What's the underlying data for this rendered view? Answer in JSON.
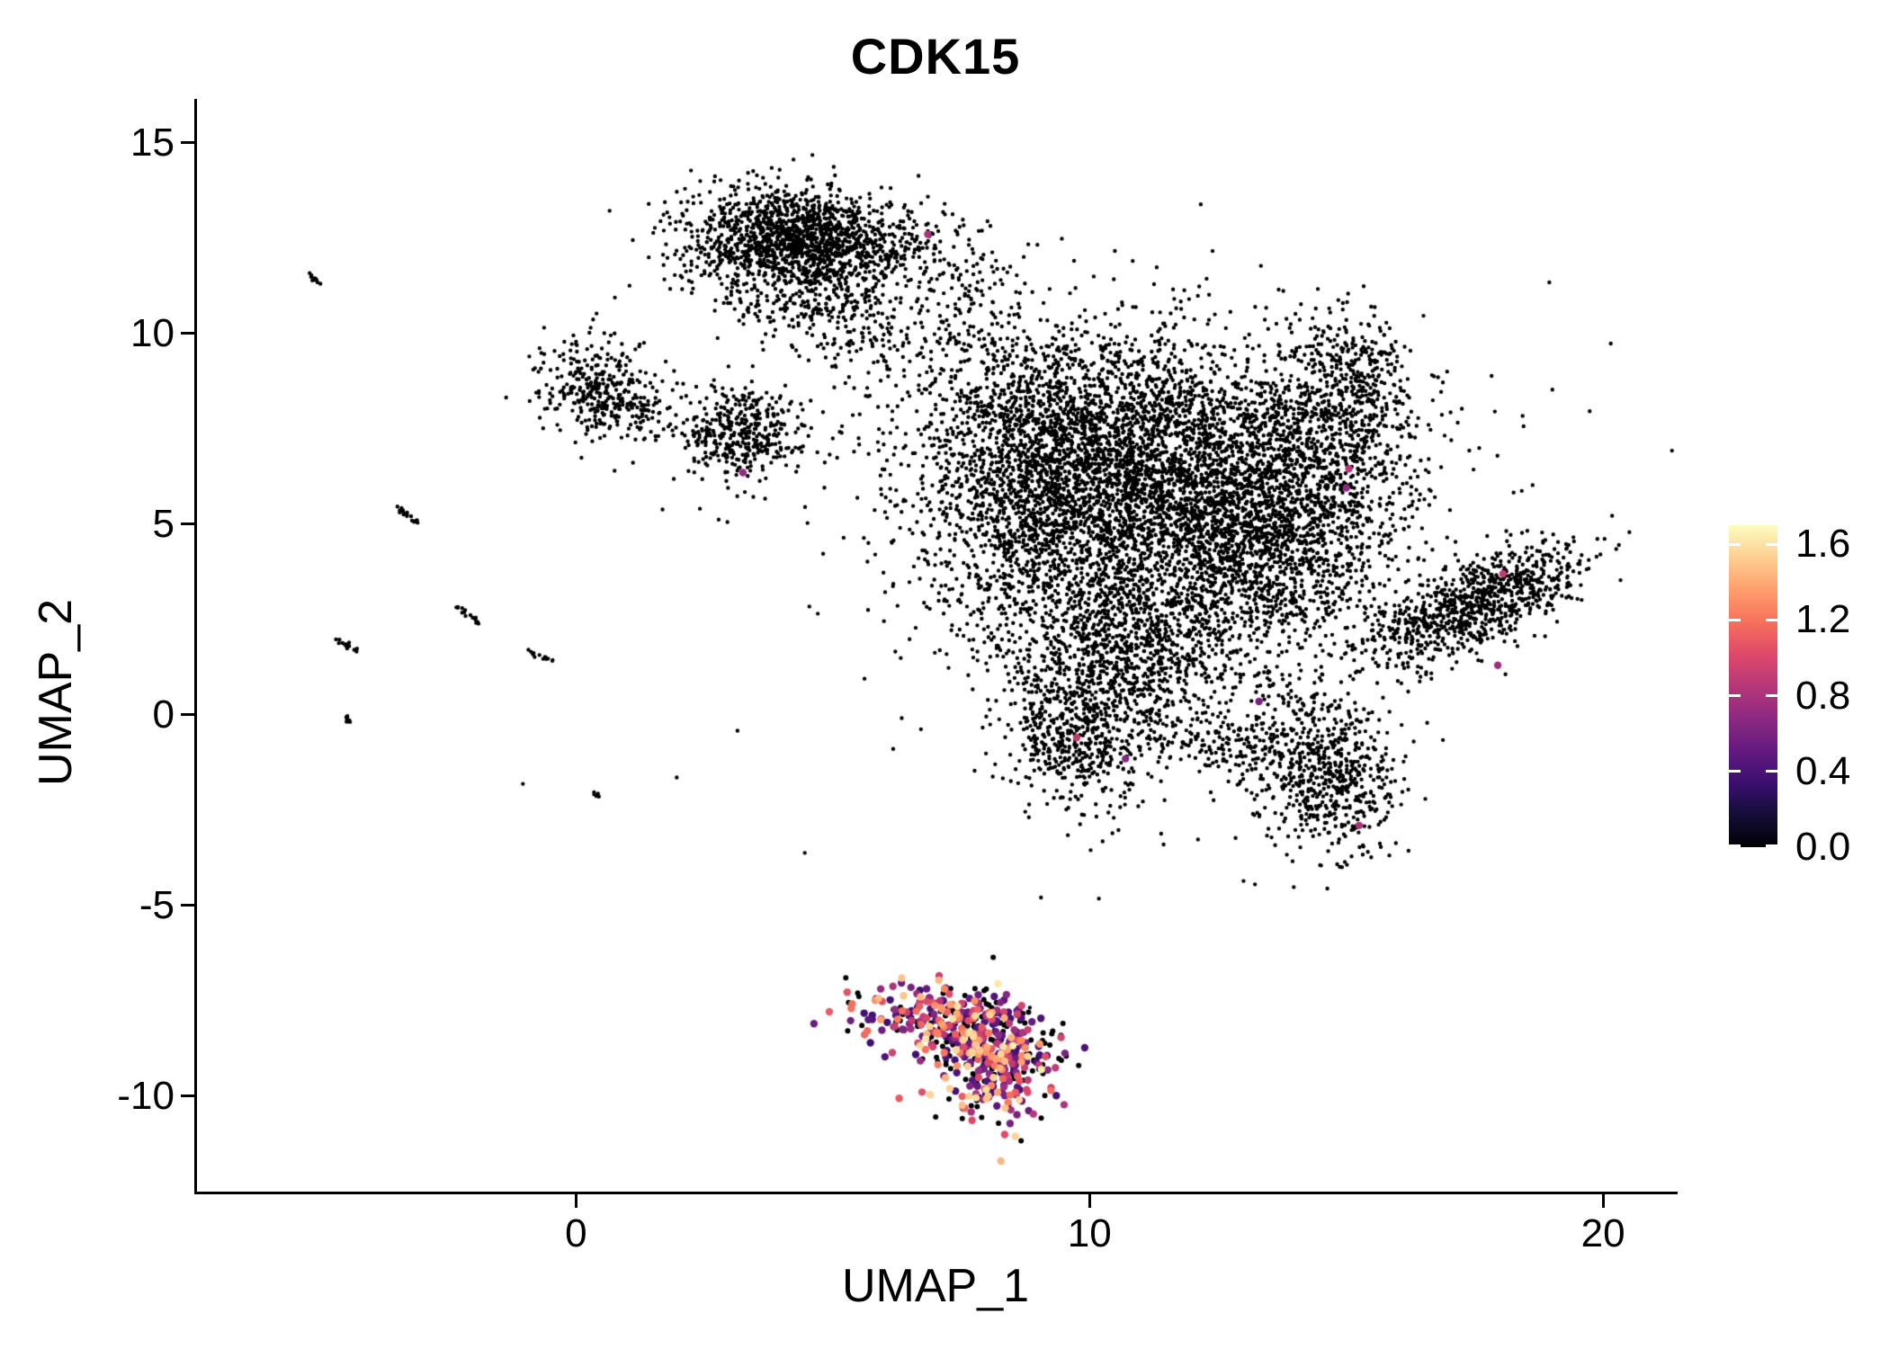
{
  "chart_data": {
    "type": "scatter",
    "title": "CDK15",
    "xlabel": "UMAP_1",
    "ylabel": "UMAP_2",
    "xlim": [
      -7.4,
      21.4
    ],
    "ylim": [
      -12.5,
      16.1
    ],
    "x_ticks": [
      0,
      10,
      20
    ],
    "y_ticks": [
      15,
      10,
      5,
      0,
      -5,
      -10
    ],
    "grid": false,
    "background": "#ffffff",
    "legend": {
      "position": "right",
      "tick_labels": [
        "1.6",
        "1.2",
        "0.8",
        "0.4",
        "0.0"
      ],
      "tick_values": [
        1.6,
        1.2,
        0.8,
        0.4,
        0.0
      ],
      "min": 0.0,
      "max": 1.7,
      "colormap": "magma",
      "stops": [
        "#000004",
        "#140e36",
        "#3b0f70",
        "#641a80",
        "#8c2981",
        "#b73779",
        "#de4968",
        "#f7705c",
        "#fe9f6d",
        "#fecf92",
        "#fcfdbf"
      ]
    },
    "style": {
      "point_color": "#000000",
      "point_radius": 2.2,
      "zero_expr_radius": 3.0,
      "expr_point_radius": 4.2,
      "axis_color": "#000000"
    },
    "seed": 1337,
    "expression_sampling": {
      "zero_fraction": 0.35,
      "min": 0.35,
      "max": 1.65,
      "skew": 1.5
    },
    "clusters": [
      {
        "cx": 10.2,
        "cy": 7.2,
        "sx": 1.9,
        "sy": 1.5,
        "rot": -10,
        "n": 2800
      },
      {
        "cx": 12.6,
        "cy": 5.4,
        "sx": 1.5,
        "sy": 1.4,
        "rot": 0,
        "n": 1700
      },
      {
        "cx": 8.9,
        "cy": 5.0,
        "sx": 1.1,
        "sy": 1.4,
        "rot": 0,
        "n": 900
      },
      {
        "cx": 11.2,
        "cy": 2.6,
        "sx": 1.7,
        "sy": 1.1,
        "rot": 0,
        "n": 1000
      },
      {
        "cx": 14.6,
        "cy": 7.5,
        "sx": 0.9,
        "sy": 1.2,
        "rot": 20,
        "n": 650
      },
      {
        "cx": 13.9,
        "cy": 4.4,
        "sx": 1.0,
        "sy": 0.9,
        "rot": 0,
        "n": 450
      },
      {
        "cx": 9.7,
        "cy": -0.4,
        "sx": 0.7,
        "sy": 0.95,
        "rot": 10,
        "n": 600
      },
      {
        "cx": 10.8,
        "cy": 1.2,
        "sx": 1.0,
        "sy": 0.6,
        "rot": 0,
        "n": 300
      },
      {
        "cx": 12.4,
        "cy": -0.7,
        "sx": 1.0,
        "sy": 0.5,
        "rot": -15,
        "n": 220
      },
      {
        "cx": 14.6,
        "cy": -1.5,
        "sx": 0.75,
        "sy": 1.05,
        "rot": 15,
        "n": 650
      },
      {
        "cx": 15.1,
        "cy": 9.2,
        "sx": 0.6,
        "sy": 0.8,
        "rot": 30,
        "n": 220
      },
      {
        "cx": 17.5,
        "cy": 2.9,
        "sx": 1.25,
        "sy": 0.5,
        "rot": 33,
        "n": 900
      },
      {
        "cx": 4.4,
        "cy": 12.5,
        "sx": 1.15,
        "sy": 0.65,
        "rot": -8,
        "n": 1500
      },
      {
        "cx": 4.0,
        "cy": 11.2,
        "sx": 0.9,
        "sy": 0.6,
        "rot": -20,
        "n": 260
      },
      {
        "cx": 5.6,
        "cy": 10.3,
        "sx": 0.9,
        "sy": 0.8,
        "rot": 0,
        "n": 160
      },
      {
        "cx": 7.6,
        "cy": 11.0,
        "sx": 0.6,
        "sy": 1.0,
        "rot": 0,
        "n": 120
      },
      {
        "cx": 0.35,
        "cy": 8.6,
        "sx": 0.55,
        "sy": 0.65,
        "rot": 0,
        "n": 300
      },
      {
        "cx": 1.2,
        "cy": 7.9,
        "sx": 0.5,
        "sy": 0.35,
        "rot": -20,
        "n": 80
      },
      {
        "cx": 3.3,
        "cy": 7.4,
        "sx": 0.6,
        "sy": 0.6,
        "rot": -15,
        "n": 400
      },
      {
        "cx": 11.5,
        "cy": 4.5,
        "sx": 3.8,
        "sy": 3.5,
        "rot": 0,
        "n": 260
      },
      {
        "cx": 7.2,
        "cy": -8.0,
        "sx": 0.9,
        "sy": 0.5,
        "rot": -15,
        "n": 260,
        "color": "expr"
      },
      {
        "cx": 8.3,
        "cy": -9.3,
        "sx": 0.55,
        "sy": 0.8,
        "rot": -15,
        "n": 220,
        "color": "expr"
      },
      {
        "cx": 7.9,
        "cy": -8.6,
        "sx": 0.7,
        "sy": 0.5,
        "rot": -20,
        "n": 120,
        "color": "expr"
      }
    ],
    "streaks": [
      {
        "x1": -5.2,
        "y1": 11.55,
        "x2": -5.0,
        "y2": 11.3,
        "n": 10
      },
      {
        "x1": -3.55,
        "y1": 5.5,
        "x2": -3.05,
        "y2": 5.0,
        "n": 18
      },
      {
        "x1": -4.65,
        "y1": 1.95,
        "x2": -4.25,
        "y2": 1.7,
        "n": 14
      },
      {
        "x1": -2.35,
        "y1": 2.85,
        "x2": -1.9,
        "y2": 2.45,
        "n": 16
      },
      {
        "x1": -0.9,
        "y1": 1.65,
        "x2": -0.45,
        "y2": 1.4,
        "n": 14
      },
      {
        "x1": -4.55,
        "y1": 0.0,
        "x2": -4.35,
        "y2": -0.25,
        "n": 10
      },
      {
        "x1": 0.3,
        "y1": -2.05,
        "x2": 0.45,
        "y2": -2.15,
        "n": 6
      }
    ],
    "highlight_points": [
      {
        "x": 6.85,
        "y": 12.6,
        "v": 0.8
      },
      {
        "x": 3.25,
        "y": 6.35,
        "v": 0.7
      },
      {
        "x": 15.05,
        "y": 6.45,
        "v": 0.85
      },
      {
        "x": 15.0,
        "y": 5.95,
        "v": 0.7
      },
      {
        "x": 18.05,
        "y": 3.7,
        "v": 0.9
      },
      {
        "x": 17.95,
        "y": 1.3,
        "v": 0.75
      },
      {
        "x": 9.75,
        "y": -0.6,
        "v": 0.9
      },
      {
        "x": 10.7,
        "y": -1.15,
        "v": 0.65
      },
      {
        "x": 15.25,
        "y": -2.9,
        "v": 0.8
      },
      {
        "x": 13.3,
        "y": 0.35,
        "v": 0.6
      }
    ]
  }
}
